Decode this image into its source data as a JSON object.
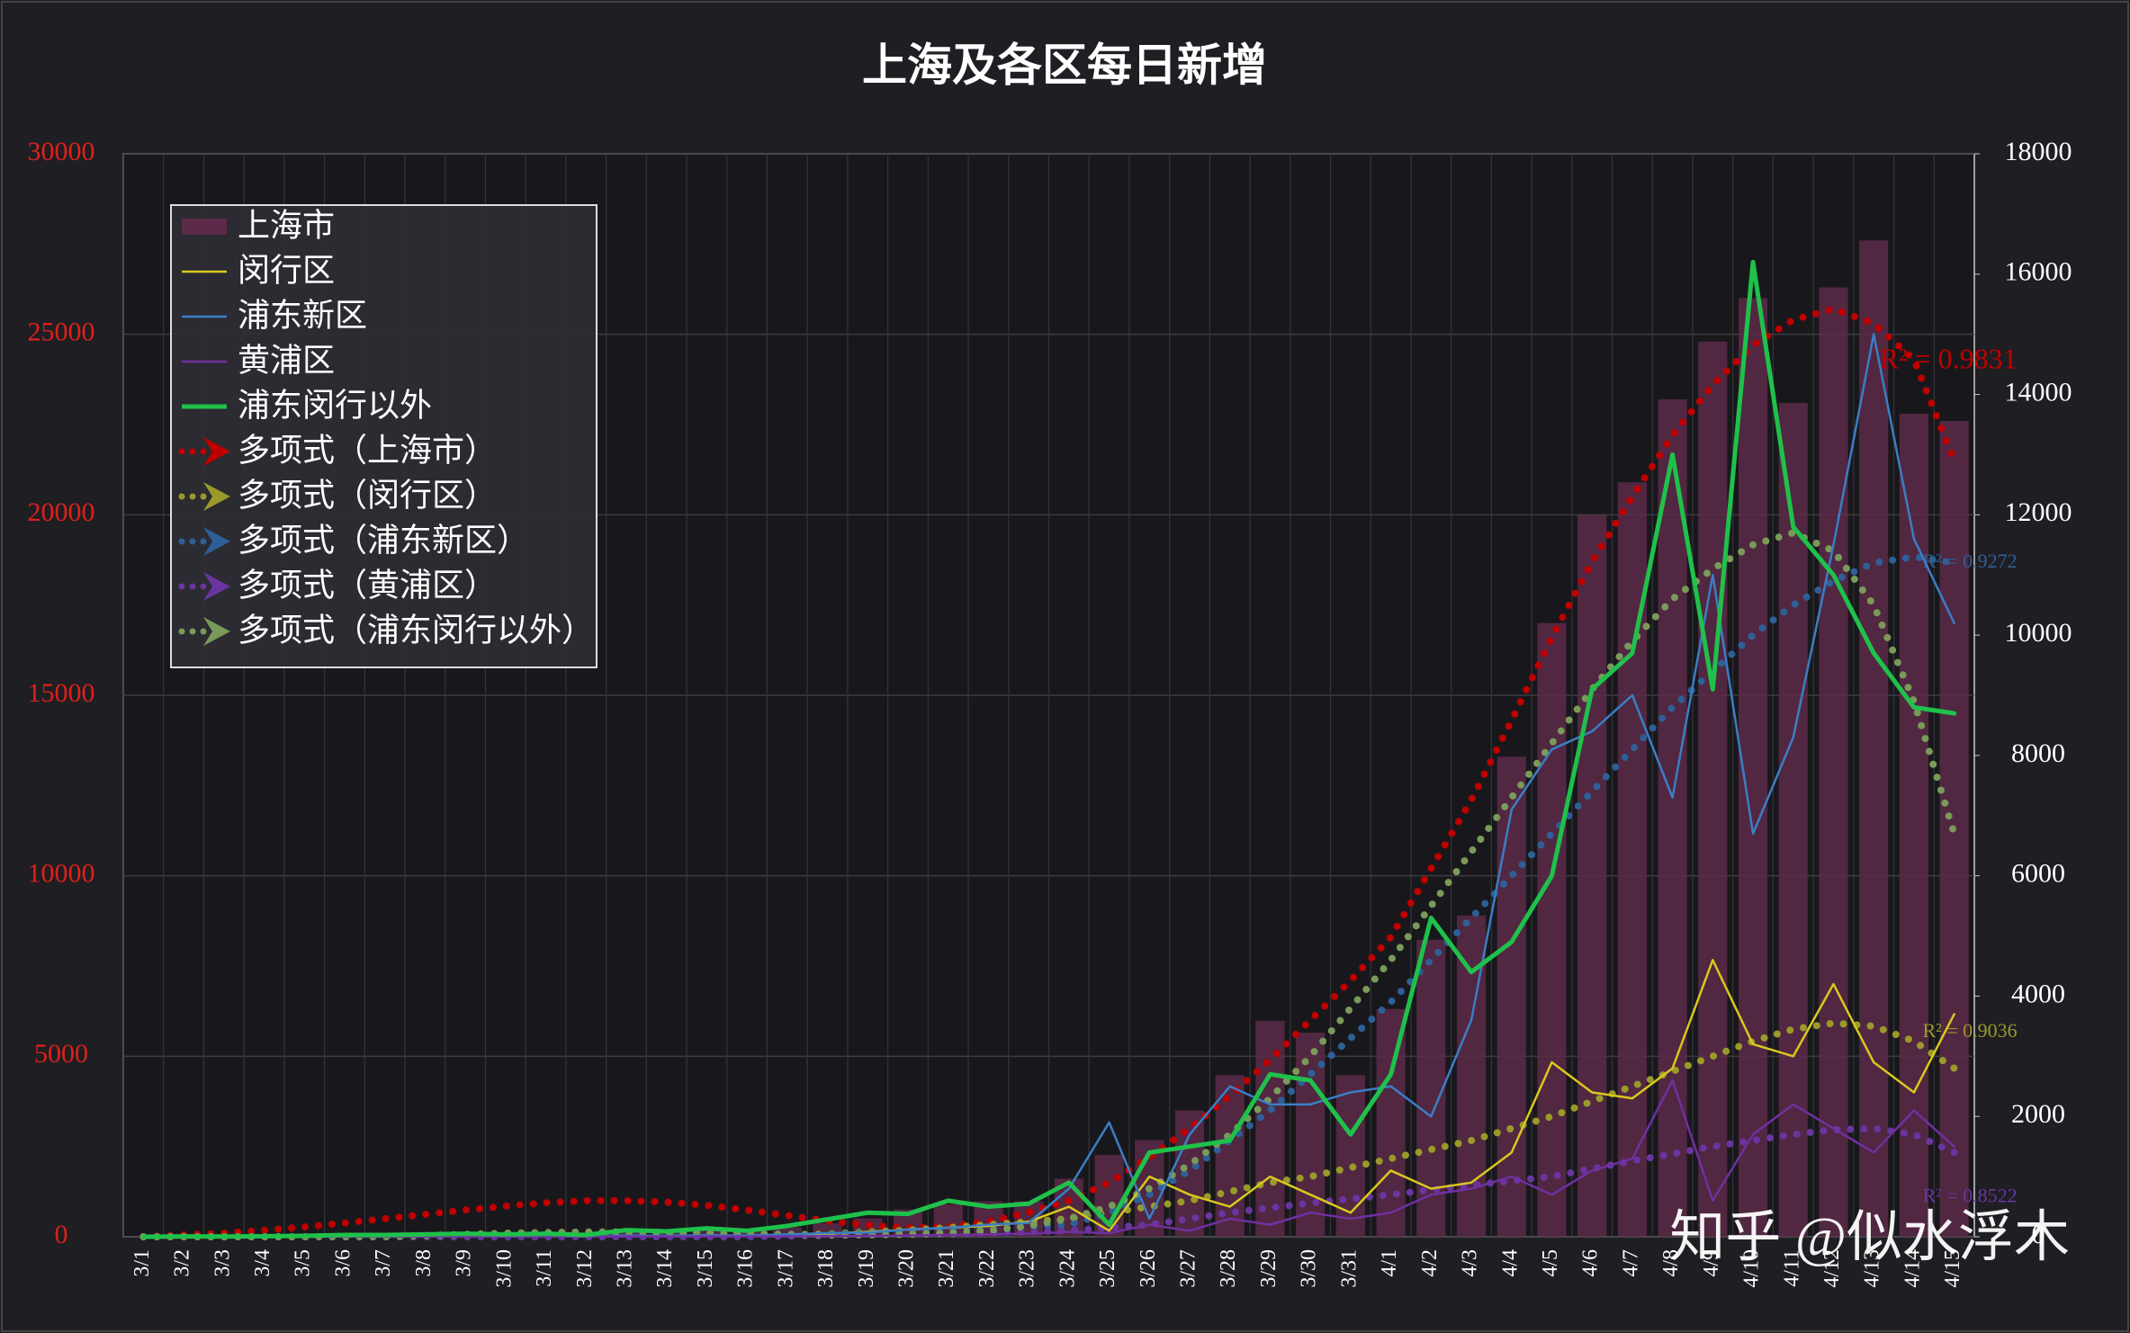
{
  "chart_data": {
    "type": "combo",
    "title": "上海及各区每日新增",
    "categories": [
      "3/1",
      "3/2",
      "3/3",
      "3/4",
      "3/5",
      "3/6",
      "3/7",
      "3/8",
      "3/9",
      "3/10",
      "3/11",
      "3/12",
      "3/13",
      "3/14",
      "3/15",
      "3/16",
      "3/17",
      "3/18",
      "3/19",
      "3/20",
      "3/21",
      "3/22",
      "3/23",
      "3/24",
      "3/25",
      "3/26",
      "3/27",
      "3/28",
      "3/29",
      "3/30",
      "3/31",
      "4/1",
      "4/2",
      "4/3",
      "4/4",
      "4/5",
      "4/6",
      "4/7",
      "4/8",
      "4/9",
      "4/10",
      "4/11",
      "4/12",
      "4/13",
      "4/14",
      "4/15"
    ],
    "ylim": [
      0,
      30000
    ],
    "yticks": [
      0,
      5000,
      10000,
      15000,
      20000,
      25000,
      30000
    ],
    "y2lim": [
      0,
      18000
    ],
    "y2ticks": [
      0,
      2000,
      4000,
      6000,
      8000,
      10000,
      12000,
      14000,
      16000,
      18000
    ],
    "grid": true,
    "legend": "top-left",
    "watermark": "知乎 @似水浮木",
    "series": [
      {
        "name": "上海市",
        "kind": "bar",
        "axis": "y",
        "color": "#5c2a48",
        "values": [
          3,
          8,
          5,
          19,
          28,
          48,
          58,
          65,
          80,
          75,
          83,
          65,
          169,
          139,
          202,
          158,
          260,
          374,
          509,
          758,
          896,
          981,
          983,
          1609,
          2269,
          2678,
          3500,
          4477,
          5982,
          5653,
          4477,
          6311,
          8226,
          8900,
          13300,
          17000,
          20000,
          20900,
          23200,
          24800,
          26000,
          23100,
          26300,
          27600,
          22800,
          22600
        ]
      },
      {
        "name": "闵行区",
        "kind": "line",
        "axis": "y2",
        "color": "#d8c81e",
        "values": [
          0,
          0,
          0,
          1,
          2,
          5,
          8,
          10,
          12,
          10,
          8,
          6,
          15,
          12,
          20,
          18,
          30,
          50,
          80,
          120,
          150,
          180,
          250,
          500,
          100,
          1000,
          700,
          500,
          1000,
          700,
          400,
          1100,
          800,
          900,
          1400,
          2900,
          2400,
          2300,
          2800,
          4600,
          3200,
          3000,
          4200,
          2900,
          2400,
          3700
        ]
      },
      {
        "name": "浦东新区",
        "kind": "line",
        "axis": "y2",
        "color": "#3a7ec6",
        "values": [
          0,
          0,
          1,
          2,
          1,
          3,
          2,
          3,
          5,
          6,
          8,
          5,
          20,
          15,
          25,
          20,
          40,
          60,
          70,
          120,
          150,
          200,
          230,
          800,
          1900,
          300,
          1700,
          2500,
          2200,
          2200,
          2400,
          2500,
          2000,
          3600,
          7100,
          8100,
          8400,
          9000,
          7300,
          11000,
          6700,
          8300,
          11500,
          15000,
          11600,
          10200
        ]
      },
      {
        "name": "黄浦区",
        "kind": "line",
        "axis": "y2",
        "color": "#7030a0",
        "values": [
          0,
          0,
          0,
          0,
          0,
          1,
          1,
          2,
          2,
          1,
          2,
          1,
          5,
          3,
          5,
          4,
          8,
          10,
          15,
          20,
          30,
          40,
          50,
          80,
          60,
          200,
          100,
          300,
          200,
          400,
          300,
          400,
          700,
          800,
          1000,
          700,
          1100,
          1300,
          2600,
          600,
          1700,
          2200,
          1800,
          1400,
          2100,
          1500
        ]
      },
      {
        "name": "浦东闵行以外",
        "kind": "line",
        "axis": "y2",
        "color": "#1fc14a",
        "values": [
          0,
          5,
          3,
          10,
          15,
          30,
          30,
          40,
          50,
          40,
          50,
          30,
          110,
          90,
          140,
          100,
          180,
          290,
          400,
          380,
          600,
          500,
          550,
          900,
          200,
          1400,
          1500,
          1600,
          2700,
          2600,
          1700,
          2700,
          5300,
          4400,
          4900,
          6000,
          9100,
          9700,
          13000,
          9100,
          16200,
          11800,
          11000,
          9700,
          8800,
          8700
        ]
      },
      {
        "name": "多项式（上海市）",
        "kind": "trend",
        "axis": "y",
        "color": "#c00000",
        "annotation": "R² = 0.9831",
        "values": [
          0,
          50,
          100,
          180,
          270,
          380,
          500,
          620,
          740,
          850,
          940,
          1000,
          1000,
          960,
          870,
          740,
          590,
          440,
          320,
          250,
          280,
          420,
          680,
          1000,
          1500,
          2200,
          3000,
          3900,
          4900,
          6000,
          7100,
          8300,
          10200,
          12100,
          14300,
          16600,
          18700,
          20500,
          22200,
          23600,
          24700,
          25400,
          25700,
          25300,
          24300,
          21500
        ]
      },
      {
        "name": "多项式（闵行区）",
        "kind": "trend",
        "axis": "y2",
        "color": "#9a9a2a",
        "annotation": "R² = 0.9036",
        "values": [
          0,
          0,
          0,
          0,
          0,
          0,
          0,
          0,
          0,
          10,
          10,
          10,
          10,
          10,
          10,
          20,
          30,
          50,
          80,
          110,
          150,
          200,
          250,
          300,
          400,
          500,
          600,
          750,
          900,
          1000,
          1150,
          1300,
          1450,
          1600,
          1800,
          2000,
          2250,
          2500,
          2750,
          3000,
          3250,
          3450,
          3550,
          3500,
          3250,
          2800
        ]
      },
      {
        "name": "多项式（浦东新区）",
        "kind": "trend",
        "axis": "y2",
        "color": "#2e5f96",
        "annotation": "R² = 0.9272",
        "values": [
          0,
          0,
          0,
          0,
          0,
          0,
          0,
          0,
          0,
          0,
          0,
          0,
          0,
          0,
          0,
          0,
          20,
          40,
          60,
          80,
          100,
          130,
          160,
          200,
          400,
          700,
          1100,
          1600,
          2100,
          2700,
          3300,
          3900,
          4600,
          5300,
          6000,
          6700,
          7400,
          8100,
          8800,
          9400,
          10000,
          10500,
          10900,
          11200,
          11300,
          11200
        ]
      },
      {
        "name": "多项式（黄浦区）",
        "kind": "trend",
        "axis": "y2",
        "color": "#6a35a0",
        "annotation": "R² = 0.8522",
        "values": [
          0,
          0,
          0,
          0,
          0,
          0,
          0,
          0,
          0,
          0,
          0,
          0,
          0,
          0,
          0,
          0,
          10,
          20,
          30,
          40,
          50,
          60,
          80,
          100,
          150,
          200,
          300,
          400,
          480,
          560,
          630,
          700,
          780,
          860,
          930,
          1000,
          1130,
          1260,
          1380,
          1500,
          1600,
          1700,
          1780,
          1800,
          1700,
          1400
        ]
      },
      {
        "name": "多项式（浦东闵行以外）",
        "kind": "trend",
        "axis": "y2",
        "color": "#7a9a5a",
        "values": [
          0,
          0,
          0,
          0,
          0,
          0,
          0,
          20,
          40,
          60,
          70,
          80,
          80,
          70,
          60,
          50,
          40,
          30,
          30,
          40,
          60,
          100,
          180,
          300,
          500,
          800,
          1200,
          1700,
          2300,
          3000,
          3800,
          4600,
          5500,
          6400,
          7300,
          8200,
          9100,
          9900,
          10600,
          11100,
          11500,
          11700,
          11400,
          10500,
          8900,
          6700
        ]
      }
    ]
  }
}
